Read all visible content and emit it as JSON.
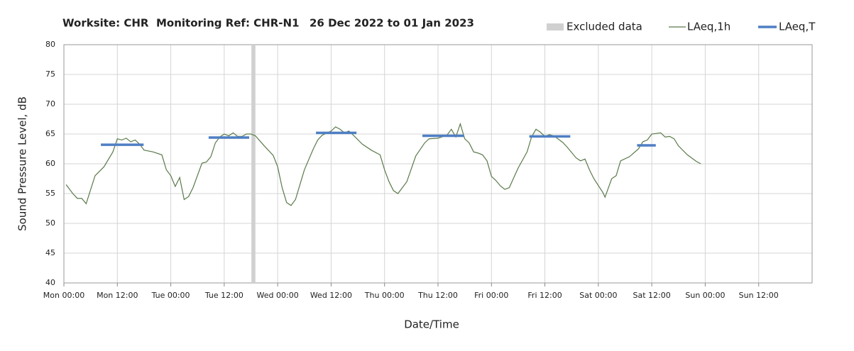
{
  "chart_data": {
    "type": "line",
    "title_parts": [
      "Worksite: CHR",
      "Monitoring Ref: CHR-N1",
      "26 Dec 2022 to 01 Jan 2023"
    ],
    "xlabel": "Date/Time",
    "ylabel": "Sound Pressure Level, dB",
    "xlim": [
      0,
      168
    ],
    "ylim": [
      40,
      80
    ],
    "xticks": [
      {
        "value": 0,
        "label": "Mon 00:00"
      },
      {
        "value": 12,
        "label": "Mon 12:00"
      },
      {
        "value": 24,
        "label": "Tue 00:00"
      },
      {
        "value": 36,
        "label": "Tue 12:00"
      },
      {
        "value": 48,
        "label": "Wed 00:00"
      },
      {
        "value": 60,
        "label": "Wed 12:00"
      },
      {
        "value": 72,
        "label": "Thu 00:00"
      },
      {
        "value": 84,
        "label": "Thu 12:00"
      },
      {
        "value": 96,
        "label": "Fri 00:00"
      },
      {
        "value": 108,
        "label": "Fri 12:00"
      },
      {
        "value": 120,
        "label": "Sat 00:00"
      },
      {
        "value": 132,
        "label": "Sat 12:00"
      },
      {
        "value": 144,
        "label": "Sun 00:00"
      },
      {
        "value": 156,
        "label": "Sun 12:00"
      }
    ],
    "yticks": [
      40,
      45,
      50,
      55,
      60,
      65,
      70,
      75,
      80
    ],
    "grid": true,
    "excluded": {
      "name": "Excluded data",
      "color": "#d0d0d0",
      "x": [
        42.1,
        43
      ]
    },
    "series": [
      {
        "name": "LAeq,1h",
        "color": "#5a7a4a",
        "x": [
          0.5,
          2,
          3,
          4,
          5,
          7,
          9,
          11,
          12,
          13,
          14,
          15,
          16,
          17,
          18,
          20,
          22,
          23,
          24,
          25,
          26,
          27,
          28,
          29,
          31,
          32,
          33,
          34,
          35,
          36,
          37,
          38,
          39,
          40,
          41,
          42,
          43,
          45,
          47,
          48,
          49,
          50,
          51,
          52,
          54,
          56,
          57,
          58,
          60,
          61,
          62,
          63,
          64,
          65,
          67,
          69,
          71,
          72,
          73,
          74,
          75,
          77,
          79,
          81,
          82,
          84,
          86,
          87,
          88,
          89,
          90,
          91,
          92,
          93,
          94,
          95,
          96,
          97,
          98,
          99,
          100,
          102,
          104,
          105,
          106,
          107,
          108,
          109,
          110,
          112,
          113,
          115,
          116,
          117,
          118,
          119,
          121,
          121.5,
          123,
          124,
          125,
          127,
          129,
          130,
          131,
          132,
          134,
          135,
          136,
          137,
          138,
          140,
          142,
          143
        ],
        "values": [
          56.5,
          55,
          54.2,
          54.2,
          53.3,
          58,
          59.5,
          62,
          64.2,
          64,
          64.3,
          63.7,
          64,
          63.3,
          62.3,
          62,
          61.5,
          59,
          58,
          56.2,
          57.7,
          54,
          54.5,
          56,
          60.1,
          60.3,
          61.2,
          63.5,
          64.5,
          65,
          64.7,
          65.2,
          64.6,
          64.6,
          65,
          65,
          64.7,
          63,
          61.4,
          59.5,
          56,
          53.5,
          53,
          54,
          59,
          62.5,
          64,
          64.8,
          65.5,
          66.2,
          65.8,
          65.2,
          65.5,
          64.8,
          63.3,
          62.3,
          61.5,
          59,
          57,
          55.5,
          55,
          57,
          61.3,
          63.5,
          64.2,
          64.3,
          64.8,
          65.8,
          64.5,
          66.7,
          64.2,
          63.5,
          62,
          61.8,
          61.5,
          60.5,
          57.9,
          57.2,
          56.3,
          55.7,
          56,
          59.3,
          62,
          64.5,
          65.8,
          65.3,
          64.6,
          64.9,
          64.7,
          63.6,
          62.8,
          61,
          60.5,
          60.8,
          59,
          57.5,
          55.2,
          54.4,
          57.5,
          58,
          60.5,
          61.2,
          62.5,
          63.7,
          64,
          65,
          65.2,
          64.5,
          64.6,
          64.2,
          63,
          61.5,
          60.4,
          60
        ]
      },
      {
        "name": "LAeq,T",
        "color": "#4f7fc4",
        "x0": [
          8.3,
          32.5,
          56.6,
          80.5,
          104.5,
          128.7
        ],
        "x1": [
          17.9,
          41.6,
          65.7,
          89.8,
          113.7,
          132.9
        ],
        "values": [
          63.2,
          64.4,
          65.2,
          64.7,
          64.6,
          63.1
        ]
      }
    ]
  }
}
